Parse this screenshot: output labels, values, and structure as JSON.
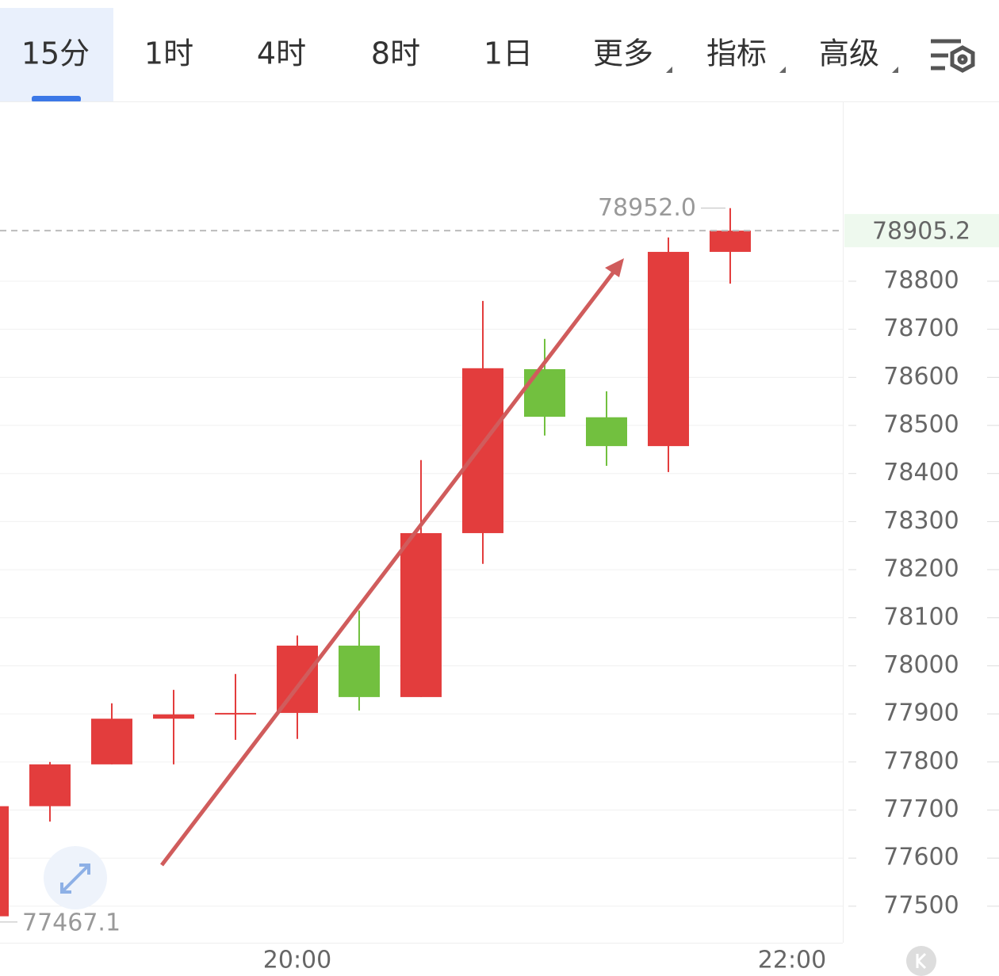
{
  "toolbar": {
    "tabs": [
      "15分",
      "1时",
      "4时",
      "8时",
      "1日",
      "更多",
      "指标",
      "高级"
    ]
  },
  "chart_data": {
    "type": "candlestick",
    "categories": [
      null,
      null,
      null,
      null,
      null,
      "20:00",
      null,
      null,
      null,
      null,
      null,
      null,
      null,
      "22:00"
    ],
    "open": [
      77479,
      77708,
      77795,
      77890,
      77902,
      77902,
      78042,
      77935,
      78276,
      78617,
      78517,
      78457,
      78861,
      null
    ],
    "high": [
      77708,
      77800,
      77922,
      77950,
      77983,
      78063,
      78115,
      78428,
      78759,
      78680,
      78571,
      78891,
      78952.0,
      null
    ],
    "low": [
      77467.1,
      77676,
      77795,
      77795,
      77846,
      77848,
      77907,
      77935,
      78212,
      78479,
      78416,
      78403,
      78795,
      null
    ],
    "close": [
      77708,
      77795,
      77890,
      77899,
      77902,
      78042,
      77935,
      78276,
      78619,
      78518,
      78457,
      78861,
      78905.2,
      null
    ],
    "up_color": "#e33d3d",
    "down_color": "#72c03f",
    "ylim": [
      77424,
      79174
    ],
    "yticks": [
      77500,
      77600,
      77700,
      77800,
      77900,
      78000,
      78100,
      78200,
      78300,
      78400,
      78500,
      78600,
      78700,
      78800
    ],
    "grid": true,
    "annotations": {
      "high": "78952.0",
      "low": "77467.1",
      "last": "78905.2"
    }
  }
}
